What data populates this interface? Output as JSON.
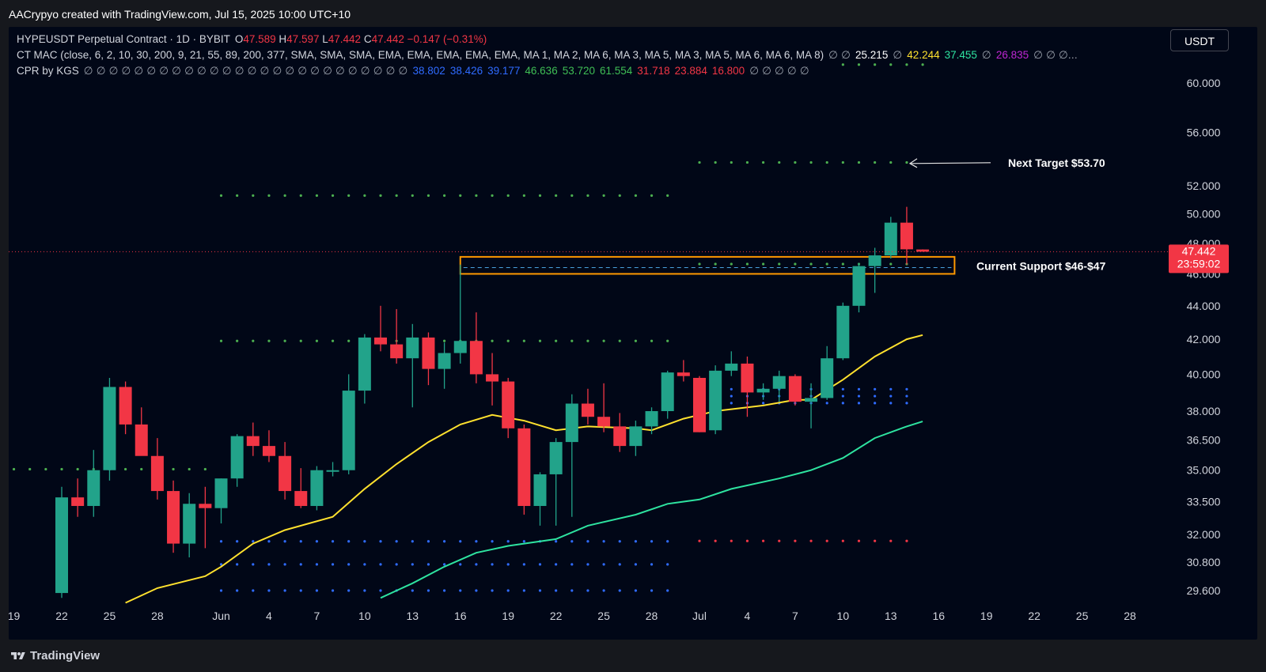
{
  "header": {
    "credit": "AACrypyo created with TradingView.com, Jul 15, 2025 10:00 UTC+10"
  },
  "footer": {
    "brand": "TradingView"
  },
  "currency_selector": {
    "value": "USDT"
  },
  "legend": {
    "line1": {
      "symbol": "HYPEUSDT Perpetual Contract · 1D · BYBIT",
      "o_label": "O",
      "o": "47.589",
      "h_label": "H",
      "h": "47.597",
      "l_label": "L",
      "l": "47.442",
      "c_label": "C",
      "c": "47.442",
      "change": "−0.147 (−0.31%)"
    },
    "line2": {
      "name": "CT MAC (close, 6, 2, 10, 30, 200, 9, 21, 55, 89, 200, 377, SMA, SMA, SMA, EMA, EMA, EMA, EMA, EMA, MA 1, MA 2, MA 6, MA 3, MA 5, MA 3, MA 5, MA 6, MA 6, MA 8)",
      "empty": "∅ ∅",
      "v1": "25.215",
      "sep1": "∅",
      "v2": "42.244",
      "v3": "37.455",
      "sep2": "∅",
      "v4": "26.835",
      "tail": "∅ ∅ ∅..."
    },
    "line3": {
      "name": "CPR by KGS",
      "empties": "∅ ∅ ∅ ∅ ∅ ∅ ∅ ∅ ∅ ∅ ∅ ∅ ∅ ∅ ∅ ∅ ∅ ∅ ∅ ∅ ∅ ∅ ∅ ∅ ∅ ∅",
      "b1": "38.802",
      "b2": "38.426",
      "b3": "39.177",
      "g1": "46.636",
      "g2": "53.720",
      "g3": "61.554",
      "r1": "31.718",
      "r2": "23.884",
      "r3": "16.800",
      "tail": "∅ ∅ ∅ ∅ ∅"
    }
  },
  "annotations": {
    "next_target": "Next Target $53.70",
    "current_support": "Current Support $46-$47"
  },
  "price_label": {
    "price": "47.442",
    "countdown": "23:59:02"
  },
  "colors": {
    "up": "#22a38a",
    "down": "#f23645",
    "ma_yellow": "#ffe12e",
    "ma_green": "#2ee3a0",
    "cpr_green": "#4caf50",
    "cpr_blue": "#2f6bff",
    "cpr_red": "#f23645",
    "box": "#ff9800",
    "background": "#010717"
  },
  "chart_data": {
    "type": "candlestick",
    "symbol": "HYPEUSDT",
    "timeframe": "1D",
    "y_axis": {
      "scale": "log",
      "ticks": [
        29.6,
        30.8,
        32.0,
        33.5,
        35.0,
        36.5,
        38.0,
        40.0,
        42.0,
        44.0,
        46.0,
        48.0,
        50.0,
        52.0,
        56.0,
        60.0
      ],
      "tick_labels": [
        "29.600",
        "30.800",
        "32.000",
        "33.500",
        "35.000",
        "36.500",
        "38.000",
        "40.000",
        "42.000",
        "44.000",
        "46.000",
        "48.000",
        "50.000",
        "52.000",
        "56.000",
        "60.000"
      ]
    },
    "x_axis": {
      "ticks": [
        {
          "d": "2025-05-19",
          "label": "19"
        },
        {
          "d": "2025-05-22",
          "label": "22"
        },
        {
          "d": "2025-05-25",
          "label": "25"
        },
        {
          "d": "2025-05-28",
          "label": "28"
        },
        {
          "d": "2025-06-01",
          "label": "Jun"
        },
        {
          "d": "2025-06-04",
          "label": "4"
        },
        {
          "d": "2025-06-07",
          "label": "7"
        },
        {
          "d": "2025-06-10",
          "label": "10"
        },
        {
          "d": "2025-06-13",
          "label": "13"
        },
        {
          "d": "2025-06-16",
          "label": "16"
        },
        {
          "d": "2025-06-19",
          "label": "19"
        },
        {
          "d": "2025-06-22",
          "label": "22"
        },
        {
          "d": "2025-06-25",
          "label": "25"
        },
        {
          "d": "2025-06-28",
          "label": "28"
        },
        {
          "d": "2025-07-01",
          "label": "Jul"
        },
        {
          "d": "2025-07-04",
          "label": "4"
        },
        {
          "d": "2025-07-07",
          "label": "7"
        },
        {
          "d": "2025-07-10",
          "label": "10"
        },
        {
          "d": "2025-07-13",
          "label": "13"
        },
        {
          "d": "2025-07-16",
          "label": "16"
        },
        {
          "d": "2025-07-19",
          "label": "19"
        },
        {
          "d": "2025-07-22",
          "label": "22"
        },
        {
          "d": "2025-07-25",
          "label": "25"
        },
        {
          "d": "2025-07-28",
          "label": "28"
        }
      ]
    },
    "candles": [
      {
        "d": "2025-05-22",
        "o": 29.5,
        "h": 34.2,
        "l": 29.3,
        "c": 33.7
      },
      {
        "d": "2025-05-23",
        "o": 33.7,
        "h": 34.6,
        "l": 32.8,
        "c": 33.3
      },
      {
        "d": "2025-05-24",
        "o": 33.3,
        "h": 36.0,
        "l": 32.8,
        "c": 35.0
      },
      {
        "d": "2025-05-25",
        "o": 35.0,
        "h": 39.8,
        "l": 34.5,
        "c": 39.3
      },
      {
        "d": "2025-05-26",
        "o": 39.3,
        "h": 39.6,
        "l": 36.8,
        "c": 37.3
      },
      {
        "d": "2025-05-27",
        "o": 37.3,
        "h": 38.2,
        "l": 35.8,
        "c": 35.7
      },
      {
        "d": "2025-05-28",
        "o": 35.7,
        "h": 36.6,
        "l": 33.6,
        "c": 34.0
      },
      {
        "d": "2025-05-29",
        "o": 34.0,
        "h": 34.5,
        "l": 31.2,
        "c": 31.6
      },
      {
        "d": "2025-05-30",
        "o": 31.6,
        "h": 33.9,
        "l": 31.0,
        "c": 33.4
      },
      {
        "d": "2025-05-31",
        "o": 33.4,
        "h": 34.2,
        "l": 31.4,
        "c": 33.2
      },
      {
        "d": "2025-06-01",
        "o": 33.2,
        "h": 34.6,
        "l": 32.5,
        "c": 34.6
      },
      {
        "d": "2025-06-02",
        "o": 34.6,
        "h": 36.8,
        "l": 34.2,
        "c": 36.7
      },
      {
        "d": "2025-06-03",
        "o": 36.7,
        "h": 37.4,
        "l": 35.7,
        "c": 36.2
      },
      {
        "d": "2025-06-04",
        "o": 36.2,
        "h": 37.0,
        "l": 35.4,
        "c": 35.7
      },
      {
        "d": "2025-06-05",
        "o": 35.7,
        "h": 36.4,
        "l": 33.6,
        "c": 34.0
      },
      {
        "d": "2025-06-06",
        "o": 34.0,
        "h": 35.1,
        "l": 33.2,
        "c": 33.3
      },
      {
        "d": "2025-06-07",
        "o": 33.3,
        "h": 35.2,
        "l": 33.1,
        "c": 35.0
      },
      {
        "d": "2025-06-08",
        "o": 35.0,
        "h": 35.4,
        "l": 34.7,
        "c": 35.0
      },
      {
        "d": "2025-06-09",
        "o": 35.0,
        "h": 40.0,
        "l": 34.8,
        "c": 39.1
      },
      {
        "d": "2025-06-10",
        "o": 39.1,
        "h": 42.3,
        "l": 38.4,
        "c": 42.1
      },
      {
        "d": "2025-06-11",
        "o": 42.1,
        "h": 44.0,
        "l": 41.3,
        "c": 41.7
      },
      {
        "d": "2025-06-12",
        "o": 41.7,
        "h": 43.8,
        "l": 40.6,
        "c": 40.9
      },
      {
        "d": "2025-06-13",
        "o": 40.9,
        "h": 42.9,
        "l": 38.2,
        "c": 42.1
      },
      {
        "d": "2025-06-14",
        "o": 42.1,
        "h": 42.4,
        "l": 39.4,
        "c": 40.3
      },
      {
        "d": "2025-06-15",
        "o": 40.3,
        "h": 41.8,
        "l": 39.2,
        "c": 41.2
      },
      {
        "d": "2025-06-16",
        "o": 41.2,
        "h": 46.6,
        "l": 40.6,
        "c": 41.9
      },
      {
        "d": "2025-06-17",
        "o": 41.9,
        "h": 43.6,
        "l": 39.5,
        "c": 40.0
      },
      {
        "d": "2025-06-18",
        "o": 40.0,
        "h": 41.2,
        "l": 38.3,
        "c": 39.6
      },
      {
        "d": "2025-06-19",
        "o": 39.6,
        "h": 39.8,
        "l": 36.6,
        "c": 37.1
      },
      {
        "d": "2025-06-20",
        "o": 37.1,
        "h": 37.3,
        "l": 32.9,
        "c": 33.3
      },
      {
        "d": "2025-06-21",
        "o": 33.3,
        "h": 34.9,
        "l": 32.4,
        "c": 34.8
      },
      {
        "d": "2025-06-22",
        "o": 34.8,
        "h": 36.6,
        "l": 32.4,
        "c": 36.4
      },
      {
        "d": "2025-06-23",
        "o": 36.4,
        "h": 38.9,
        "l": 32.8,
        "c": 38.4
      },
      {
        "d": "2025-06-24",
        "o": 38.4,
        "h": 39.2,
        "l": 37.3,
        "c": 37.7
      },
      {
        "d": "2025-06-25",
        "o": 37.7,
        "h": 39.5,
        "l": 36.9,
        "c": 37.2
      },
      {
        "d": "2025-06-26",
        "o": 37.2,
        "h": 37.9,
        "l": 35.9,
        "c": 36.2
      },
      {
        "d": "2025-06-27",
        "o": 36.2,
        "h": 37.5,
        "l": 35.7,
        "c": 37.2
      },
      {
        "d": "2025-06-28",
        "o": 37.2,
        "h": 38.2,
        "l": 36.8,
        "c": 38.0
      },
      {
        "d": "2025-06-29",
        "o": 38.0,
        "h": 40.2,
        "l": 37.6,
        "c": 40.1
      },
      {
        "d": "2025-06-30",
        "o": 40.1,
        "h": 40.8,
        "l": 39.6,
        "c": 39.9
      },
      {
        "d": "2025-07-01",
        "o": 39.8,
        "h": 39.9,
        "l": 36.9,
        "c": 36.9
      },
      {
        "d": "2025-07-02",
        "o": 37.0,
        "h": 40.5,
        "l": 36.8,
        "c": 40.2
      },
      {
        "d": "2025-07-03",
        "o": 40.2,
        "h": 41.3,
        "l": 39.9,
        "c": 40.6
      },
      {
        "d": "2025-07-04",
        "o": 40.6,
        "h": 41.0,
        "l": 37.7,
        "c": 39.0
      },
      {
        "d": "2025-07-05",
        "o": 39.0,
        "h": 39.5,
        "l": 38.6,
        "c": 39.2
      },
      {
        "d": "2025-07-06",
        "o": 39.2,
        "h": 40.2,
        "l": 38.5,
        "c": 39.9
      },
      {
        "d": "2025-07-07",
        "o": 39.9,
        "h": 40.0,
        "l": 38.3,
        "c": 38.5
      },
      {
        "d": "2025-07-08",
        "o": 38.5,
        "h": 39.5,
        "l": 37.1,
        "c": 38.7
      },
      {
        "d": "2025-07-09",
        "o": 38.7,
        "h": 41.6,
        "l": 38.6,
        "c": 40.9
      },
      {
        "d": "2025-07-10",
        "o": 40.9,
        "h": 44.2,
        "l": 40.8,
        "c": 44.0
      },
      {
        "d": "2025-07-11",
        "o": 44.0,
        "h": 46.7,
        "l": 43.6,
        "c": 46.5
      },
      {
        "d": "2025-07-12",
        "o": 46.5,
        "h": 47.7,
        "l": 44.8,
        "c": 47.2
      },
      {
        "d": "2025-07-13",
        "o": 47.2,
        "h": 49.8,
        "l": 47.0,
        "c": 49.4
      },
      {
        "d": "2025-07-14",
        "o": 49.4,
        "h": 50.5,
        "l": 46.6,
        "c": 47.6
      },
      {
        "d": "2025-07-15",
        "o": 47.589,
        "h": 47.597,
        "l": 47.442,
        "c": 47.442
      }
    ],
    "ma_yellow": [
      {
        "d": "2025-05-26",
        "v": 29.1
      },
      {
        "d": "2025-05-28",
        "v": 29.7
      },
      {
        "d": "2025-05-31",
        "v": 30.2
      },
      {
        "d": "2025-06-01",
        "v": 30.6
      },
      {
        "d": "2025-06-03",
        "v": 31.6
      },
      {
        "d": "2025-06-05",
        "v": 32.2
      },
      {
        "d": "2025-06-08",
        "v": 32.8
      },
      {
        "d": "2025-06-10",
        "v": 34.1
      },
      {
        "d": "2025-06-12",
        "v": 35.3
      },
      {
        "d": "2025-06-14",
        "v": 36.4
      },
      {
        "d": "2025-06-16",
        "v": 37.3
      },
      {
        "d": "2025-06-18",
        "v": 37.8
      },
      {
        "d": "2025-06-20",
        "v": 37.5
      },
      {
        "d": "2025-06-22",
        "v": 37.0
      },
      {
        "d": "2025-06-24",
        "v": 37.2
      },
      {
        "d": "2025-06-27",
        "v": 37.1
      },
      {
        "d": "2025-06-28",
        "v": 37.0
      },
      {
        "d": "2025-06-30",
        "v": 37.6
      },
      {
        "d": "2025-07-02",
        "v": 38.0
      },
      {
        "d": "2025-07-05",
        "v": 38.3
      },
      {
        "d": "2025-07-07",
        "v": 38.6
      },
      {
        "d": "2025-07-08",
        "v": 38.6
      },
      {
        "d": "2025-07-10",
        "v": 39.7
      },
      {
        "d": "2025-07-12",
        "v": 41.0
      },
      {
        "d": "2025-07-14",
        "v": 42.0
      },
      {
        "d": "2025-07-15",
        "v": 42.244
      }
    ],
    "ma_green": [
      {
        "d": "2025-06-11",
        "v": 29.3
      },
      {
        "d": "2025-06-13",
        "v": 29.9
      },
      {
        "d": "2025-06-15",
        "v": 30.6
      },
      {
        "d": "2025-06-17",
        "v": 31.2
      },
      {
        "d": "2025-06-19",
        "v": 31.5
      },
      {
        "d": "2025-06-22",
        "v": 31.8
      },
      {
        "d": "2025-06-24",
        "v": 32.4
      },
      {
        "d": "2025-06-27",
        "v": 32.9
      },
      {
        "d": "2025-06-29",
        "v": 33.4
      },
      {
        "d": "2025-07-01",
        "v": 33.6
      },
      {
        "d": "2025-07-03",
        "v": 34.1
      },
      {
        "d": "2025-07-06",
        "v": 34.6
      },
      {
        "d": "2025-07-08",
        "v": 35.0
      },
      {
        "d": "2025-07-10",
        "v": 35.6
      },
      {
        "d": "2025-07-12",
        "v": 36.6
      },
      {
        "d": "2025-07-14",
        "v": 37.2
      },
      {
        "d": "2025-07-15",
        "v": 37.455
      }
    ],
    "cpr_levels": [
      {
        "from": "2025-05-19",
        "to": "2025-05-31",
        "value": 35.05,
        "color": "green"
      },
      {
        "from": "2025-06-01",
        "to": "2025-06-30",
        "value": 51.3,
        "color": "green"
      },
      {
        "from": "2025-06-01",
        "to": "2025-06-30",
        "value": 41.9,
        "color": "green"
      },
      {
        "from": "2025-06-01",
        "to": "2025-06-30",
        "value": 31.7,
        "color": "blue"
      },
      {
        "from": "2025-06-01",
        "to": "2025-06-30",
        "value": 30.7,
        "color": "blue"
      },
      {
        "from": "2025-06-01",
        "to": "2025-06-30",
        "value": 29.6,
        "color": "blue"
      },
      {
        "from": "2025-07-01",
        "to": "2025-07-15",
        "value": 53.72,
        "color": "green"
      },
      {
        "from": "2025-07-01",
        "to": "2025-07-15",
        "value": 46.636,
        "color": "green"
      },
      {
        "from": "2025-07-01",
        "to": "2025-07-15",
        "value": 39.177,
        "color": "blue"
      },
      {
        "from": "2025-07-01",
        "to": "2025-07-15",
        "value": 38.802,
        "color": "blue"
      },
      {
        "from": "2025-07-01",
        "to": "2025-07-15",
        "value": 38.426,
        "color": "blue"
      },
      {
        "from": "2025-07-01",
        "to": "2025-07-15",
        "value": 31.718,
        "color": "red"
      }
    ],
    "top_dots": {
      "from": "2025-07-10",
      "to": "2025-07-15",
      "value": 61.554
    },
    "support_box": {
      "from": "2025-06-16",
      "to": "2025-07-17",
      "low": 46.0,
      "high": 47.0,
      "mid": 46.4
    },
    "current_price": 47.442,
    "next_target": 53.7
  }
}
